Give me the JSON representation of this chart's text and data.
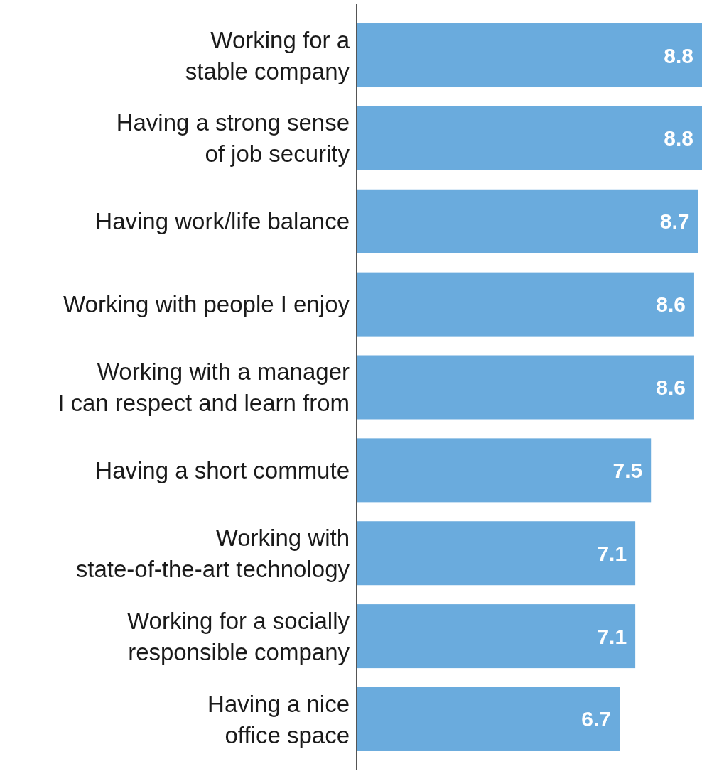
{
  "chart_data": {
    "type": "bar",
    "orientation": "horizontal",
    "data_labels": true,
    "categories": [
      "Working for a\nstable company",
      "Having a strong sense\nof job security",
      "Having work/life balance",
      "Working with people I enjoy",
      "Working with a manager\nI can respect and learn from",
      "Having a short commute",
      "Working with\nstate-of-the-art technology",
      "Working for a socially\nresponsible company",
      "Having a nice\noffice space"
    ],
    "values": [
      8.8,
      8.8,
      8.7,
      8.6,
      8.6,
      7.5,
      7.1,
      7.1,
      6.7
    ],
    "color": "#6aabdd"
  }
}
